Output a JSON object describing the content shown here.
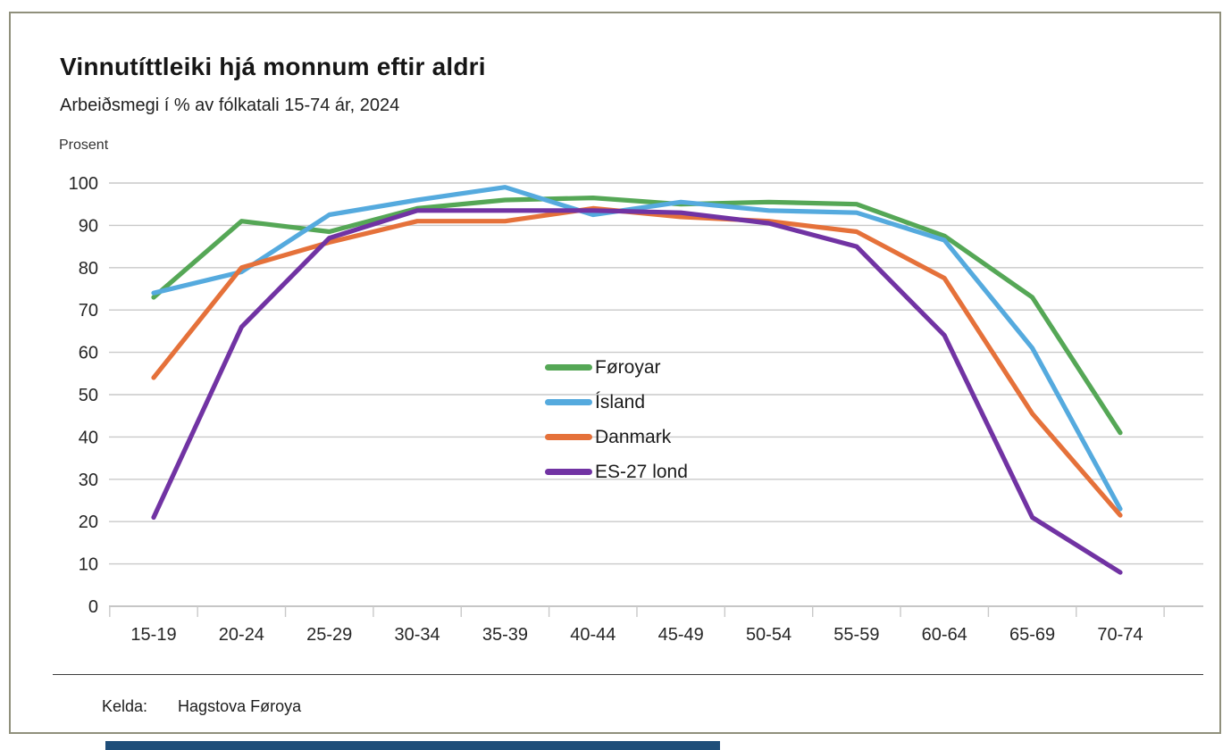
{
  "card": {
    "title": "Vinnutíttleiki hjá monnum eftir aldri",
    "subtitle": "Arbeiðsmegi í % av fólkatali 15-74 ár, 2024",
    "unit_label": "Prosent"
  },
  "footer": {
    "source_label": "Kelda:",
    "source_value": "Hagstova Føroya"
  },
  "colors": {
    "grid": "#c9c9c9",
    "axis": "#b3b3b3",
    "tick": "#c9c9c9",
    "text": "#262626",
    "accent_bar": "#1f4e79",
    "card_border": "#90907c"
  },
  "chart_data": {
    "type": "line",
    "title": "Vinnutíttleiki hjá monnum eftir aldri",
    "subtitle": "Arbeiðsmegi í % av fólkatali 15-74 ár, 2024",
    "xlabel": "",
    "ylabel": "Prosent",
    "ylim": [
      0,
      100
    ],
    "ytick_step": 10,
    "grid": "horizontal",
    "legend_position": "center-middle",
    "categories": [
      "15-19",
      "20-24",
      "25-29",
      "30-34",
      "35-39",
      "40-44",
      "45-49",
      "50-54",
      "55-59",
      "60-64",
      "65-69",
      "70-74"
    ],
    "series": [
      {
        "name": "Føroyar",
        "color": "#55a756",
        "values": [
          73,
          91,
          88.5,
          94,
          96,
          96.5,
          95,
          95.5,
          95,
          87.5,
          73,
          41
        ]
      },
      {
        "name": "Ísland",
        "color": "#55aade",
        "values": [
          74,
          79,
          92.5,
          96,
          99,
          92.5,
          95.5,
          93.5,
          93,
          86.5,
          61,
          23
        ]
      },
      {
        "name": "Danmark",
        "color": "#e5713a",
        "values": [
          54,
          80,
          86,
          91,
          91,
          94,
          92,
          91,
          88.5,
          77.5,
          45.5,
          21.5
        ]
      },
      {
        "name": "ES-27 lond",
        "color": "#7133a3",
        "values": [
          21,
          66,
          87,
          93.5,
          93.5,
          93.5,
          93,
          90.5,
          85,
          64,
          21,
          8
        ]
      }
    ]
  }
}
